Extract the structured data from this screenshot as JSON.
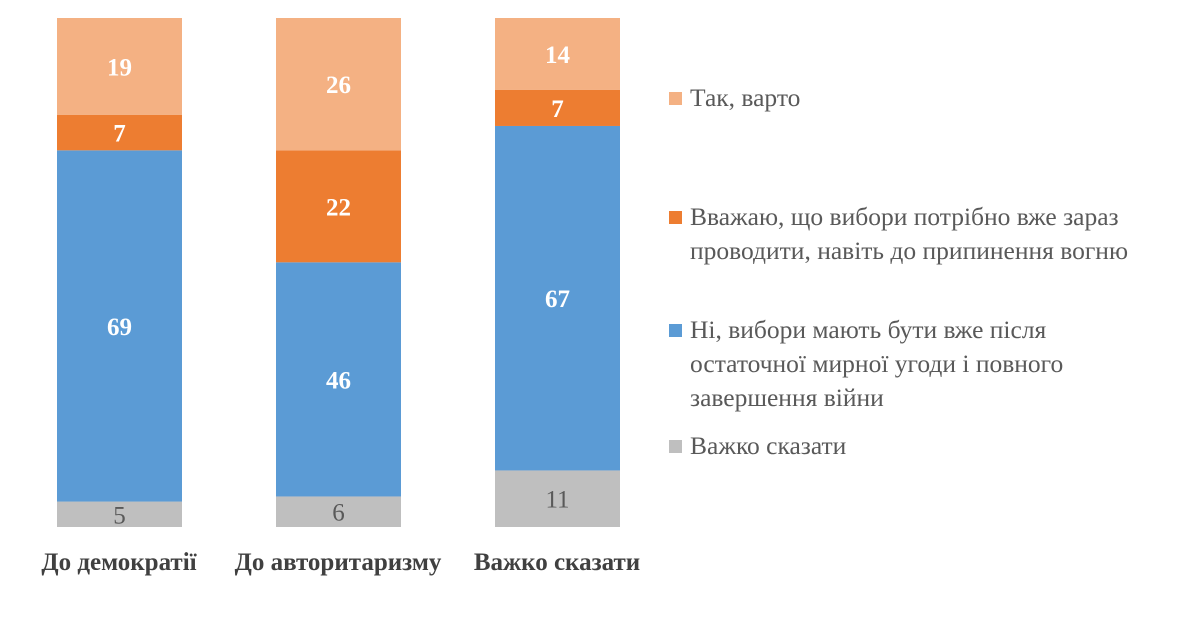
{
  "chart_data": {
    "type": "bar",
    "stacked": true,
    "categories": [
      "До демократії",
      "До авторитаризму",
      "Важко сказати"
    ],
    "series": [
      {
        "name": "Важко сказати",
        "color": "#BFBFBF",
        "values": [
          5,
          6,
          11
        ]
      },
      {
        "name": "Ні, вибори мають бути вже після остаточної мирної угоди і повного завершення війни",
        "color": "#5B9BD5",
        "values": [
          69,
          46,
          67
        ]
      },
      {
        "name": "Вважаю, що вибори потрібно вже зараз проводити, навіть до припинення вогню",
        "color": "#ED7D31",
        "values": [
          7,
          22,
          7
        ]
      },
      {
        "name": "Так, варто",
        "color": "#F4B183",
        "values": [
          19,
          26,
          14
        ]
      }
    ],
    "ylim": [
      0,
      100
    ],
    "grid": false,
    "legend": "right"
  }
}
